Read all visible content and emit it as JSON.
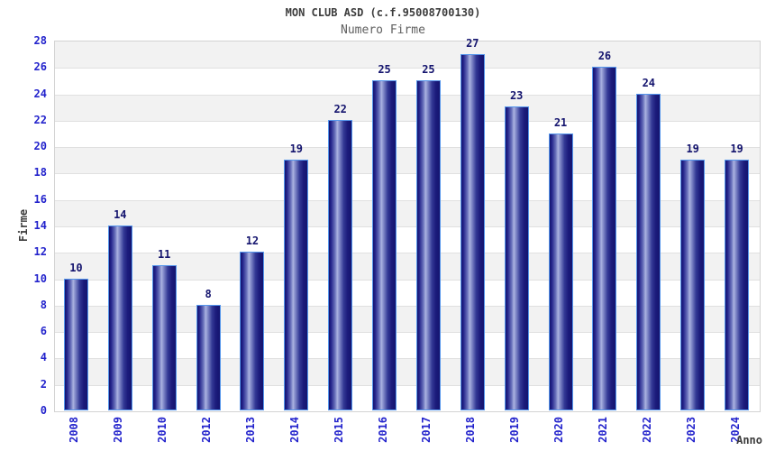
{
  "chart_data": {
    "type": "bar",
    "title": "MON CLUB ASD (c.f.95008700130)",
    "subtitle": "Numero Firme",
    "xlabel": "Anno",
    "ylabel": "Firme",
    "categories": [
      "2008",
      "2009",
      "2010",
      "2012",
      "2013",
      "2014",
      "2015",
      "2016",
      "2017",
      "2018",
      "2019",
      "2020",
      "2021",
      "2022",
      "2023",
      "2024"
    ],
    "values": [
      10,
      14,
      11,
      8,
      12,
      19,
      22,
      25,
      25,
      27,
      23,
      21,
      26,
      24,
      19,
      19
    ],
    "ylim": [
      0,
      28
    ],
    "ytick_step": 2,
    "grid": "horizontal alternating bands with gridlines",
    "legend_position": "none",
    "colors": {
      "tick_label": "#2323cc",
      "value_label": "#14146e",
      "bar_border": "#5596ec",
      "bar_dark": "#14146e",
      "bar_mid": "#6a72bc",
      "bar_light": "#aab2e0",
      "band_gray": "#f2f2f2",
      "gridline": "#e0e0e0",
      "plot_border": "#d3d3d3",
      "title": "#3c3c3c",
      "subtitle": "#606060",
      "axis_title": "#3c3c3c",
      "background": "#ffffff"
    }
  }
}
